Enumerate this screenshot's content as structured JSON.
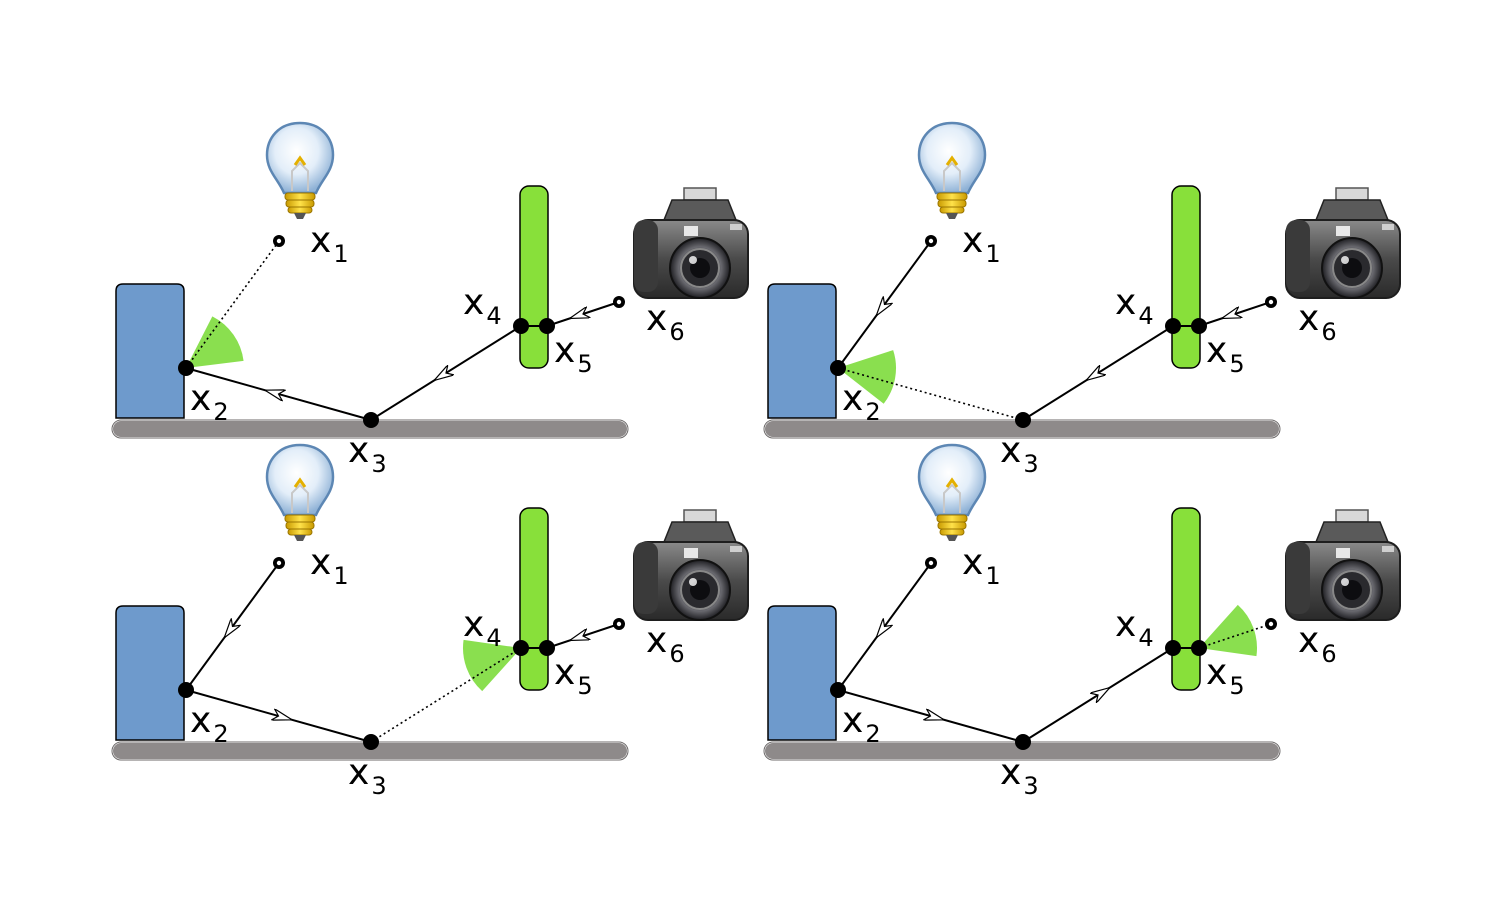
{
  "figure": {
    "labels": {
      "x1": {
        "base": "x",
        "sub": "1"
      },
      "x2": {
        "base": "x",
        "sub": "2"
      },
      "x3": {
        "base": "x",
        "sub": "3"
      },
      "x4": {
        "base": "x",
        "sub": "4"
      },
      "x5": {
        "base": "x",
        "sub": "5"
      },
      "x6": {
        "base": "x",
        "sub": "6"
      }
    },
    "icons": {
      "light": "light-bulb-icon",
      "camera": "camera-icon"
    },
    "colors": {
      "blue_block": "#6e9acc",
      "green_bar": "#88e03a",
      "floor": "#8e8a8a",
      "cone": "#7ddc3c",
      "path": "#000000"
    },
    "panels": [
      {
        "name": "top-left",
        "sampled_vertex": "x2",
        "dotted_segment": "x1-x2"
      },
      {
        "name": "top-right",
        "sampled_vertex": "x2",
        "dotted_segment": "x2-x3"
      },
      {
        "name": "bottom-left",
        "sampled_vertex": "x4",
        "dotted_segment": "x3-x4"
      },
      {
        "name": "bottom-right",
        "sampled_vertex": "x5",
        "dotted_segment": "x5-x6"
      }
    ]
  }
}
